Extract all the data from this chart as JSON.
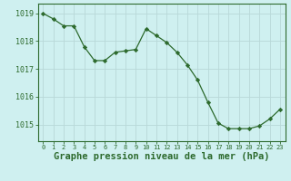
{
  "x": [
    0,
    1,
    2,
    3,
    4,
    5,
    6,
    7,
    8,
    9,
    10,
    11,
    12,
    13,
    14,
    15,
    16,
    17,
    18,
    19,
    20,
    21,
    22,
    23
  ],
  "y": [
    1019.0,
    1018.8,
    1018.55,
    1018.55,
    1017.8,
    1017.3,
    1017.3,
    1017.6,
    1017.65,
    1017.7,
    1018.45,
    1018.2,
    1017.95,
    1017.6,
    1017.15,
    1016.6,
    1015.8,
    1015.05,
    1014.85,
    1014.85,
    1014.85,
    1014.95,
    1015.2,
    1015.55
  ],
  "line_color": "#2d6a2d",
  "marker": "D",
  "marker_size": 2.2,
  "bg_color": "#cff0f0",
  "grid_color": "#b8d8d8",
  "axis_color": "#2d6a2d",
  "tick_label_color": "#2d6a2d",
  "xlabel": "Graphe pression niveau de la mer (hPa)",
  "xlabel_color": "#2d6a2d",
  "xlabel_fontsize": 7.5,
  "ylim": [
    1014.4,
    1019.35
  ],
  "yticks": [
    1015,
    1016,
    1017,
    1018,
    1019
  ],
  "xticks": [
    0,
    1,
    2,
    3,
    4,
    5,
    6,
    7,
    8,
    9,
    10,
    11,
    12,
    13,
    14,
    15,
    16,
    17,
    18,
    19,
    20,
    21,
    22,
    23
  ],
  "xtick_fontsize": 5.0,
  "ytick_fontsize": 6.0,
  "linewidth": 0.9
}
